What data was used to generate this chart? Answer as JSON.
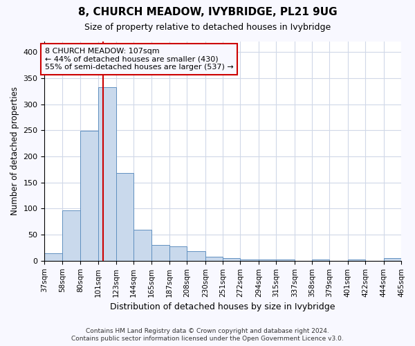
{
  "title": "8, CHURCH MEADOW, IVYBRIDGE, PL21 9UG",
  "subtitle": "Size of property relative to detached houses in Ivybridge",
  "xlabel": "Distribution of detached houses by size in Ivybridge",
  "ylabel": "Number of detached properties",
  "footer_line1": "Contains HM Land Registry data © Crown copyright and database right 2024.",
  "footer_line2": "Contains public sector information licensed under the Open Government Licence v3.0.",
  "annotation_line1": "8 CHURCH MEADOW: 107sqm",
  "annotation_line2": "← 44% of detached houses are smaller (430)",
  "annotation_line3": "55% of semi-detached houses are larger (537) →",
  "property_size": 107,
  "bar_color": "#c9d9ec",
  "bar_edge_color": "#6090c0",
  "vline_color": "#cc0000",
  "annotation_box_color": "#cc0000",
  "fig_background_color": "#f8f8ff",
  "plot_background_color": "#ffffff",
  "grid_color": "#d0d8e8",
  "bins": [
    37,
    58,
    80,
    101,
    123,
    144,
    165,
    187,
    208,
    230,
    251,
    272,
    294,
    315,
    337,
    358,
    379,
    401,
    422,
    444,
    465
  ],
  "bin_labels": [
    "37sqm",
    "58sqm",
    "80sqm",
    "101sqm",
    "123sqm",
    "144sqm",
    "165sqm",
    "187sqm",
    "208sqm",
    "230sqm",
    "251sqm",
    "272sqm",
    "294sqm",
    "315sqm",
    "337sqm",
    "358sqm",
    "379sqm",
    "401sqm",
    "422sqm",
    "444sqm",
    "465sqm"
  ],
  "counts": [
    15,
    97,
    249,
    332,
    168,
    60,
    30,
    28,
    18,
    8,
    5,
    3,
    3,
    3,
    0,
    3,
    0,
    3,
    0,
    5
  ],
  "ylim": [
    0,
    420
  ],
  "yticks": [
    0,
    50,
    100,
    150,
    200,
    250,
    300,
    350,
    400
  ]
}
